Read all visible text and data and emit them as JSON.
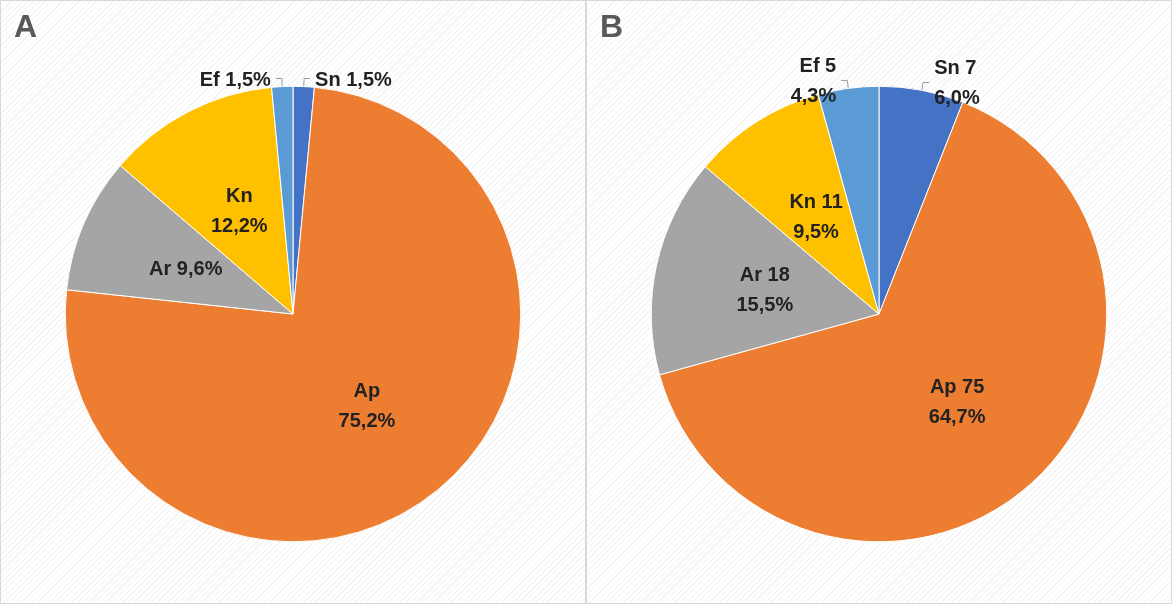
{
  "chart_data": [
    {
      "type": "pie",
      "title": "A",
      "categories": [
        "Sn",
        "Ap",
        "Ar",
        "Kn",
        "Ef"
      ],
      "values": [
        1.5,
        75.2,
        9.6,
        12.2,
        1.5
      ],
      "value_labels": [
        "1,5%",
        "75,2%",
        "9,6%",
        "12,2%",
        "1,5%"
      ],
      "colors": [
        "#4472c4",
        "#ed7d31",
        "#a5a5a5",
        "#ffc000",
        "#5b9bd5"
      ],
      "legend": false
    },
    {
      "type": "pie",
      "title": "B",
      "categories": [
        "Sn 7",
        "Ap 75",
        "Ar 18",
        "Kn 11",
        "Ef 5"
      ],
      "values": [
        6.0,
        64.7,
        15.5,
        9.5,
        4.3
      ],
      "value_labels": [
        "6,0%",
        "64,7%",
        "15,5%",
        "9,5%",
        "4,3%"
      ],
      "colors": [
        "#4472c4",
        "#ed7d31",
        "#a5a5a5",
        "#ffc000",
        "#5b9bd5"
      ],
      "legend": false
    }
  ]
}
